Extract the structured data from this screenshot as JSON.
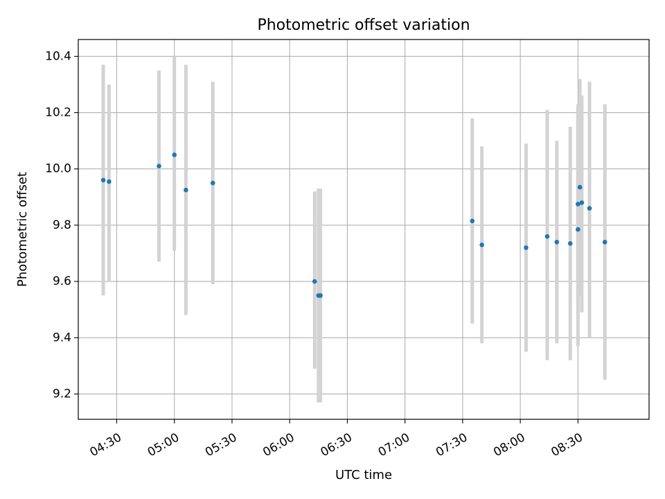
{
  "chart_data": {
    "type": "scatter",
    "title": "Photometric offset variation",
    "xlabel": "UTC time",
    "ylabel": "Photometric offset",
    "x_unit": "minutes",
    "xlim": [
      "04:10",
      "09:07"
    ],
    "ylim": [
      9.11,
      10.46
    ],
    "x_ticks": [
      "04:30",
      "05:00",
      "05:30",
      "06:00",
      "06:30",
      "07:00",
      "07:30",
      "08:00",
      "08:30"
    ],
    "y_ticks": [
      "9.2",
      "9.4",
      "9.6",
      "9.8",
      "10.0",
      "10.2",
      "10.4"
    ],
    "grid": true,
    "colors": {
      "marker": "#1f77b4",
      "errorbar": "#d3d3d3",
      "grid": "#b0b0b0"
    },
    "points": [
      {
        "x": "04:23",
        "y": 9.96,
        "ymin": 9.55,
        "ymax": 10.37
      },
      {
        "x": "04:26",
        "y": 9.955,
        "ymin": 9.6,
        "ymax": 10.3
      },
      {
        "x": "04:52",
        "y": 10.01,
        "ymin": 9.67,
        "ymax": 10.35
      },
      {
        "x": "05:00",
        "y": 10.05,
        "ymin": 9.71,
        "ymax": 10.4
      },
      {
        "x": "05:06",
        "y": 9.925,
        "ymin": 9.48,
        "ymax": 10.37
      },
      {
        "x": "05:20",
        "y": 9.95,
        "ymin": 9.59,
        "ymax": 10.31
      },
      {
        "x": "06:13",
        "y": 9.6,
        "ymin": 9.29,
        "ymax": 9.92
      },
      {
        "x": "06:15",
        "y": 9.55,
        "ymin": 9.17,
        "ymax": 9.93
      },
      {
        "x": "06:16",
        "y": 9.55,
        "ymin": 9.17,
        "ymax": 9.93
      },
      {
        "x": "07:35",
        "y": 9.815,
        "ymin": 9.45,
        "ymax": 10.18
      },
      {
        "x": "07:40",
        "y": 9.73,
        "ymin": 9.38,
        "ymax": 10.08
      },
      {
        "x": "08:03",
        "y": 9.72,
        "ymin": 9.35,
        "ymax": 10.09
      },
      {
        "x": "08:14",
        "y": 9.76,
        "ymin": 9.32,
        "ymax": 10.21
      },
      {
        "x": "08:19",
        "y": 9.74,
        "ymin": 9.38,
        "ymax": 10.1
      },
      {
        "x": "08:26",
        "y": 9.735,
        "ymin": 9.32,
        "ymax": 10.15
      },
      {
        "x": "08:30",
        "y": 9.785,
        "ymin": 9.37,
        "ymax": 10.21
      },
      {
        "x": "08:30",
        "y": 9.875,
        "ymin": 9.53,
        "ymax": 10.23
      },
      {
        "x": "08:31",
        "y": 9.935,
        "ymin": 9.55,
        "ymax": 10.32
      },
      {
        "x": "08:32",
        "y": 9.88,
        "ymin": 9.49,
        "ymax": 10.26
      },
      {
        "x": "08:36",
        "y": 9.86,
        "ymin": 9.4,
        "ymax": 10.31
      },
      {
        "x": "08:44",
        "y": 9.74,
        "ymin": 9.25,
        "ymax": 10.23
      }
    ]
  }
}
